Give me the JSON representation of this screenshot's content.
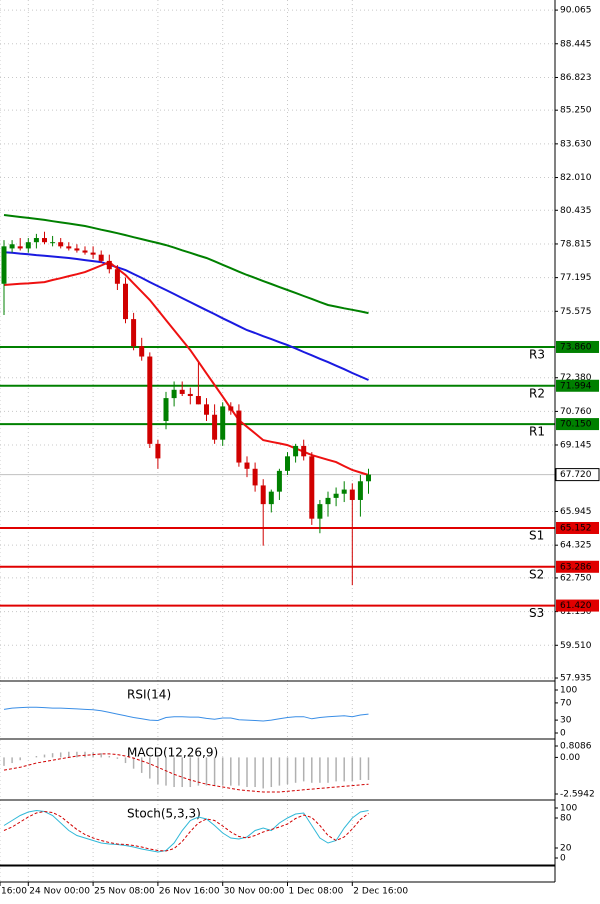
{
  "chart_data": [
    {
      "type": "candlestick",
      "up_color": "#008000",
      "down_color": "#d00000",
      "open": [
        76.9,
        78.6,
        78.7,
        78.6,
        78.9,
        79.1,
        78.9,
        78.9,
        78.7,
        78.6,
        78.5,
        78.4,
        78.3,
        78.0,
        77.6,
        76.9,
        75.2,
        73.9,
        73.4,
        69.2,
        70.3,
        71.4,
        71.8,
        71.6,
        71.5,
        71.1,
        70.6,
        69.4,
        71.0,
        70.8,
        68.3,
        68.0,
        67.2,
        66.3,
        66.9,
        67.9,
        68.6,
        69.1,
        68.6,
        65.6,
        66.3,
        66.6,
        66.8,
        67.0,
        66.5,
        67.4
      ],
      "high": [
        79.0,
        79.0,
        79.1,
        79.1,
        79.3,
        79.4,
        79.2,
        79.1,
        78.9,
        78.8,
        78.7,
        78.7,
        78.5,
        78.3,
        77.8,
        77.2,
        75.5,
        74.3,
        73.6,
        69.4,
        71.7,
        72.2,
        72.2,
        71.9,
        73.1,
        71.4,
        71.1,
        71.2,
        71.2,
        71.1,
        68.6,
        68.3,
        67.5,
        67.0,
        68.0,
        68.8,
        69.2,
        69.4,
        68.8,
        66.5,
        66.9,
        67.1,
        67.4,
        67.3,
        67.7,
        68.0
      ],
      "low": [
        75.4,
        78.4,
        78.5,
        78.4,
        78.6,
        78.8,
        78.7,
        78.6,
        78.5,
        78.4,
        78.3,
        78.1,
        77.9,
        77.4,
        76.6,
        75.0,
        73.7,
        73.2,
        69.0,
        68.0,
        69.9,
        71.0,
        71.5,
        71.1,
        71.1,
        70.3,
        69.2,
        69.1,
        70.6,
        68.1,
        67.6,
        66.9,
        64.3,
        65.9,
        66.5,
        67.7,
        68.3,
        68.4,
        65.3,
        64.9,
        65.7,
        66.2,
        66.4,
        62.4,
        65.7,
        66.8
      ],
      "close": [
        78.7,
        78.8,
        78.6,
        78.9,
        79.1,
        78.9,
        78.9,
        78.7,
        78.6,
        78.5,
        78.4,
        78.3,
        78.0,
        77.6,
        76.9,
        75.2,
        73.9,
        73.4,
        69.2,
        68.5,
        71.4,
        71.8,
        71.6,
        71.5,
        71.1,
        70.6,
        69.4,
        71.0,
        70.8,
        68.3,
        68.0,
        67.2,
        66.3,
        66.9,
        67.9,
        68.6,
        69.1,
        68.6,
        65.6,
        66.3,
        66.6,
        66.8,
        67.0,
        66.5,
        67.4,
        67.72
      ],
      "series": [
        {
          "color": "#008000",
          "values": [
            80.21,
            80.16,
            80.11,
            80.07,
            80.02,
            79.97,
            79.91,
            79.85,
            79.8,
            79.74,
            79.68,
            79.59,
            79.5,
            79.42,
            79.33,
            79.24,
            79.14,
            79.05,
            78.95,
            78.86,
            78.76,
            78.64,
            78.51,
            78.39,
            78.26,
            78.14,
            77.98,
            77.81,
            77.65,
            77.48,
            77.32,
            77.18,
            77.03,
            76.89,
            76.74,
            76.6,
            76.46,
            76.31,
            76.17,
            76.02,
            75.88,
            75.8,
            75.72,
            75.65,
            75.57,
            75.49
          ]
        },
        {
          "color": "#1a1ae0",
          "values": [
            78.42,
            78.39,
            78.35,
            78.32,
            78.28,
            78.25,
            78.21,
            78.18,
            78.14,
            78.09,
            78.04,
            77.99,
            77.94,
            77.81,
            77.69,
            77.56,
            77.37,
            77.18,
            76.98,
            76.79,
            76.6,
            76.41,
            76.21,
            76.02,
            75.82,
            75.63,
            75.44,
            75.24,
            75.05,
            74.86,
            74.67,
            74.53,
            74.38,
            74.24,
            74.09,
            73.95,
            73.79,
            73.62,
            73.46,
            73.29,
            73.13,
            72.96,
            72.79,
            72.61,
            72.44,
            72.27
          ]
        },
        {
          "color": "#ee1111",
          "values": [
            76.84,
            76.87,
            76.9,
            76.92,
            76.95,
            76.98,
            77.08,
            77.17,
            77.27,
            77.36,
            77.46,
            77.62,
            77.78,
            77.94,
            77.63,
            77.32,
            76.92,
            76.52,
            76.12,
            75.64,
            75.15,
            74.67,
            74.19,
            73.71,
            73.15,
            72.59,
            72.03,
            71.47,
            70.9,
            70.34,
            70.02,
            69.7,
            69.38,
            69.3,
            69.22,
            69.14,
            68.98,
            68.82,
            68.66,
            68.55,
            68.43,
            68.32,
            68.13,
            67.94,
            67.82,
            67.7
          ]
        }
      ],
      "levels": [
        {
          "name": "R3",
          "value": 73.86,
          "label": "73.860",
          "color": "#008000"
        },
        {
          "name": "R2",
          "value": 71.994,
          "label": "71.994",
          "color": "#008000"
        },
        {
          "name": "R1",
          "value": 70.15,
          "label": "70.150",
          "color": "#008000"
        },
        {
          "name": "S1",
          "value": 65.152,
          "label": "65.152",
          "color": "#e00000"
        },
        {
          "name": "S2",
          "value": 63.286,
          "label": "63.286",
          "color": "#e00000"
        },
        {
          "name": "S3",
          "value": 61.42,
          "label": "61.420",
          "color": "#e00000"
        }
      ],
      "last": {
        "value": 67.72,
        "label": "67.720"
      },
      "ylim": [
        57.84,
        90.55
      ],
      "yticks": [
        90.065,
        88.445,
        86.823,
        {
          "value": 85.25,
          "label": "85.250"
        },
        {
          "value": 83.63,
          "label": "83.630"
        },
        {
          "value": 82.01,
          "label": "82.010"
        },
        80.435,
        78.815,
        77.195,
        75.575,
        {
          "value": 72.38,
          "label": "72.380"
        },
        {
          "value": 70.76,
          "label": "70.760"
        },
        69.145,
        65.945,
        64.325,
        {
          "value": 62.75,
          "label": "62.750"
        },
        {
          "value": 61.13,
          "label": "61.130"
        },
        {
          "value": 59.51,
          "label": "59.510"
        },
        57.935
      ],
      "xticks": [
        {
          "value": -0.5,
          "label": "16:00"
        },
        {
          "value": 3,
          "label": "24 Nov 00:00"
        },
        {
          "value": 11,
          "label": "25 Nov 08:00"
        },
        {
          "value": 19,
          "label": "26 Nov 16:00"
        },
        {
          "value": 27,
          "label": "30 Nov 00:00"
        },
        {
          "value": 35,
          "label": "1 Dec 08:00"
        },
        {
          "value": 43,
          "label": "2 Dec 16:00"
        }
      ],
      "grid": true
    },
    {
      "type": "line",
      "title": "RSI(14)",
      "series": [
        {
          "color": "#3a8ee6",
          "values": [
            55,
            58,
            59,
            60,
            60,
            59,
            58,
            58,
            57,
            56,
            55,
            54,
            52,
            48,
            44,
            40,
            36,
            33,
            30,
            29,
            36,
            38,
            38,
            37,
            37,
            34,
            32,
            35,
            35,
            31,
            30,
            29,
            28,
            30,
            33,
            36,
            38,
            38,
            33,
            36,
            38,
            39,
            40,
            38,
            42,
            44
          ]
        }
      ],
      "ylim": [
        -11.6,
        116.3
      ],
      "yticks": [
        100,
        70,
        30,
        0
      ]
    },
    {
      "type": "line",
      "title": "MACD(12,26,9)",
      "series": [
        {
          "type": "bar",
          "color": "#b0b0b0",
          "values": [
            -0.6,
            -0.4,
            -0.2,
            0,
            0.1,
            0.2,
            0.3,
            0.35,
            0.4,
            0.4,
            0.4,
            0.35,
            0.3,
            0.1,
            -0.1,
            -0.4,
            -0.8,
            -1.1,
            -1.5,
            -1.9,
            -2.0,
            -2.1,
            -2.1,
            -2.1,
            -2.0,
            -2.0,
            -2.0,
            -2.0,
            -2.0,
            -2.0,
            -2.1,
            -2.1,
            -2.2,
            -2.1,
            -2.0,
            -1.9,
            -1.8,
            -1.7,
            -1.8,
            -1.8,
            -1.8,
            -1.7,
            -1.7,
            -1.7,
            -1.6,
            -1.6
          ]
        },
        {
          "type": "line",
          "dash": true,
          "color": "#d00000",
          "values": [
            -0.9,
            -0.8,
            -0.7,
            -0.55,
            -0.4,
            -0.3,
            -0.2,
            -0.1,
            0,
            0.1,
            0.15,
            0.2,
            0.25,
            0.25,
            0.2,
            0.1,
            -0.05,
            -0.25,
            -0.45,
            -0.7,
            -0.95,
            -1.2,
            -1.4,
            -1.6,
            -1.75,
            -1.9,
            -2.0,
            -2.1,
            -2.2,
            -2.3,
            -2.35,
            -2.4,
            -2.45,
            -2.45,
            -2.45,
            -2.4,
            -2.35,
            -2.3,
            -2.25,
            -2.2,
            -2.15,
            -2.1,
            -2.05,
            -2.0,
            -1.95,
            -1.9
          ]
        }
      ],
      "ylim": [
        -2.949,
        1.163
      ],
      "yticks": [
        0.8086,
        {
          "value": 0,
          "label": "0.00"
        },
        -2.5942
      ]
    },
    {
      "type": "line",
      "title": "Stoch(5,3,3)",
      "series": [
        {
          "color": "#30b8d8",
          "values": [
            65,
            75,
            85,
            92,
            95,
            93,
            85,
            70,
            55,
            45,
            40,
            35,
            30,
            28,
            27,
            25,
            22,
            18,
            15,
            12,
            15,
            30,
            55,
            75,
            82,
            78,
            65,
            50,
            40,
            38,
            42,
            55,
            60,
            55,
            70,
            80,
            88,
            90,
            65,
            40,
            30,
            35,
            60,
            80,
            92,
            95
          ]
        },
        {
          "dash": true,
          "color": "#d00000",
          "values": [
            55,
            62,
            72,
            82,
            90,
            93,
            91,
            83,
            70,
            57,
            47,
            40,
            35,
            31,
            28,
            27,
            25,
            22,
            18,
            15,
            14,
            19,
            33,
            53,
            70,
            78,
            75,
            64,
            52,
            43,
            40,
            45,
            52,
            57,
            62,
            68,
            79,
            86,
            81,
            65,
            45,
            35,
            42,
            58,
            77,
            89
          ]
        }
      ],
      "ylim": [
        -12,
        112
      ],
      "yticks": [
        100,
        80,
        20,
        0
      ]
    }
  ]
}
